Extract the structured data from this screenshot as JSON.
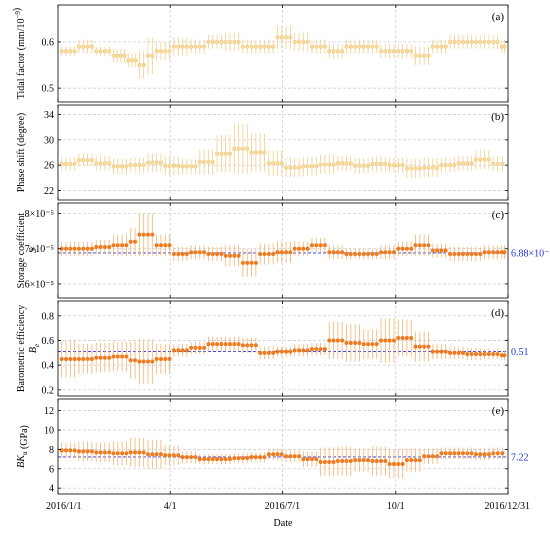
{
  "colors": {
    "light_series": "#f0c878",
    "dark_series": "#f07a1e",
    "light_errorbar": "#f3cf8a",
    "dark_errorbar": "#f5b26e",
    "reference_line": "#2431d6",
    "grid": "#c9c9c9"
  },
  "chart_data": {
    "type": "scatter",
    "shared_x": {
      "label": "Date",
      "type": "date",
      "range": [
        "2016-01-01",
        "2016-12-31"
      ],
      "ticks": [
        {
          "date": "2016-01-01",
          "label": "2016/1/1"
        },
        {
          "date": "2016-04-01",
          "label": "4/1"
        },
        {
          "date": "2016-07-01",
          "label": "2016/7/1"
        },
        {
          "date": "2016-10-01",
          "label": "10/1"
        },
        {
          "date": "2016-12-31",
          "label": "2016/12/31"
        }
      ],
      "grid": true
    },
    "panels": [
      {
        "id": "a",
        "panel_label": "(a)",
        "ylabel": "Tidal factor (mm/10⁻⁹)",
        "ylim": [
          0.47,
          0.68
        ],
        "yticks": [
          {
            "v": 0.5,
            "label": "0.5"
          },
          {
            "v": 0.6,
            "label": "0.6"
          }
        ],
        "grid": true,
        "marker_color": "light",
        "reference": null,
        "points": [
          [
            "2016-01-04",
            0.58,
            0.01
          ],
          [
            "2016-01-18",
            0.59,
            0.015
          ],
          [
            "2016-02-01",
            0.58,
            0.01
          ],
          [
            "2016-02-15",
            0.57,
            0.015
          ],
          [
            "2016-02-27",
            0.56,
            0.015
          ],
          [
            "2016-03-07",
            0.55,
            0.03
          ],
          [
            "2016-03-14",
            0.57,
            0.04
          ],
          [
            "2016-03-21",
            0.58,
            0.02
          ],
          [
            "2016-04-04",
            0.59,
            0.02
          ],
          [
            "2016-04-18",
            0.59,
            0.015
          ],
          [
            "2016-05-02",
            0.6,
            0.015
          ],
          [
            "2016-05-16",
            0.6,
            0.02
          ],
          [
            "2016-05-30",
            0.59,
            0.015
          ],
          [
            "2016-06-13",
            0.59,
            0.015
          ],
          [
            "2016-06-27",
            0.61,
            0.025
          ],
          [
            "2016-07-11",
            0.6,
            0.02
          ],
          [
            "2016-07-25",
            0.59,
            0.015
          ],
          [
            "2016-08-08",
            0.58,
            0.015
          ],
          [
            "2016-08-22",
            0.59,
            0.015
          ],
          [
            "2016-09-05",
            0.59,
            0.015
          ],
          [
            "2016-09-19",
            0.58,
            0.015
          ],
          [
            "2016-10-03",
            0.58,
            0.015
          ],
          [
            "2016-10-17",
            0.57,
            0.02
          ],
          [
            "2016-10-31",
            0.59,
            0.015
          ],
          [
            "2016-11-14",
            0.6,
            0.015
          ],
          [
            "2016-11-28",
            0.6,
            0.015
          ],
          [
            "2016-12-12",
            0.6,
            0.015
          ],
          [
            "2016-12-26",
            0.59,
            0.015
          ]
        ]
      },
      {
        "id": "b",
        "panel_label": "(b)",
        "ylabel": "Phase shift (degree)",
        "ylim": [
          20.5,
          35.5
        ],
        "yticks": [
          {
            "v": 22,
            "label": "22"
          },
          {
            "v": 26,
            "label": "26"
          },
          {
            "v": 30,
            "label": "30"
          },
          {
            "v": 34,
            "label": "34"
          }
        ],
        "grid": true,
        "marker_color": "light",
        "reference": null,
        "points": [
          [
            "2016-01-04",
            26.2,
            1.0
          ],
          [
            "2016-01-18",
            26.8,
            1.0
          ],
          [
            "2016-02-01",
            26.3,
            1.2
          ],
          [
            "2016-02-15",
            25.8,
            1.2
          ],
          [
            "2016-02-29",
            26.0,
            1.2
          ],
          [
            "2016-03-14",
            26.4,
            1.5
          ],
          [
            "2016-03-28",
            25.9,
            1.5
          ],
          [
            "2016-04-11",
            25.8,
            1.2
          ],
          [
            "2016-04-25",
            26.5,
            2.0
          ],
          [
            "2016-05-09",
            27.8,
            3.0
          ],
          [
            "2016-05-23",
            28.6,
            4.0
          ],
          [
            "2016-06-06",
            28.0,
            3.0
          ],
          [
            "2016-06-20",
            26.3,
            2.0
          ],
          [
            "2016-07-04",
            25.6,
            1.5
          ],
          [
            "2016-07-18",
            25.8,
            1.5
          ],
          [
            "2016-08-01",
            26.1,
            1.5
          ],
          [
            "2016-08-15",
            26.3,
            1.2
          ],
          [
            "2016-08-29",
            25.9,
            1.2
          ],
          [
            "2016-09-12",
            26.2,
            1.2
          ],
          [
            "2016-09-26",
            26.0,
            1.2
          ],
          [
            "2016-10-10",
            25.5,
            1.5
          ],
          [
            "2016-10-24",
            25.6,
            1.5
          ],
          [
            "2016-11-07",
            26.0,
            1.2
          ],
          [
            "2016-11-21",
            26.3,
            1.2
          ],
          [
            "2016-12-05",
            26.9,
            1.5
          ],
          [
            "2016-12-19",
            26.2,
            1.2
          ]
        ]
      },
      {
        "id": "c",
        "panel_label": "(c)",
        "ylabel": "Storage coefficient S",
        "ylim": [
          5.6e-05,
          8.3e-05
        ],
        "yticks": [
          {
            "v": 6e-05,
            "label": "6×10⁻⁵"
          },
          {
            "v": 7e-05,
            "label": "7×10⁻⁵"
          },
          {
            "v": 8e-05,
            "label": "8×10⁻⁵"
          }
        ],
        "grid": true,
        "marker_color": "dark",
        "reference": {
          "value": 6.88e-05,
          "label": "6.88×10⁻⁵"
        },
        "points": [
          [
            "2016-01-04",
            7e-05,
            2e-06
          ],
          [
            "2016-01-18",
            7e-05,
            2e-06
          ],
          [
            "2016-02-01",
            7.05e-05,
            2e-06
          ],
          [
            "2016-02-15",
            7.1e-05,
            3e-06
          ],
          [
            "2016-02-29",
            7.2e-05,
            4e-06
          ],
          [
            "2016-03-07",
            7.4e-05,
            6e-06
          ],
          [
            "2016-03-21",
            7.1e-05,
            3e-06
          ],
          [
            "2016-04-04",
            6.85e-05,
            2e-06
          ],
          [
            "2016-04-18",
            6.9e-05,
            2e-06
          ],
          [
            "2016-05-02",
            6.85e-05,
            2e-06
          ],
          [
            "2016-05-16",
            6.8e-05,
            3e-06
          ],
          [
            "2016-05-30",
            6.6e-05,
            4e-06
          ],
          [
            "2016-06-13",
            6.85e-05,
            3e-06
          ],
          [
            "2016-06-27",
            6.9e-05,
            3e-06
          ],
          [
            "2016-07-11",
            7e-05,
            2e-06
          ],
          [
            "2016-07-25",
            7.1e-05,
            2e-06
          ],
          [
            "2016-08-08",
            6.9e-05,
            2e-06
          ],
          [
            "2016-08-22",
            6.85e-05,
            1.5e-06
          ],
          [
            "2016-09-05",
            6.85e-05,
            1.5e-06
          ],
          [
            "2016-09-19",
            6.9e-05,
            2e-06
          ],
          [
            "2016-10-03",
            7e-05,
            2e-06
          ],
          [
            "2016-10-17",
            7.1e-05,
            3e-06
          ],
          [
            "2016-10-31",
            6.95e-05,
            2e-06
          ],
          [
            "2016-11-14",
            6.85e-05,
            2e-06
          ],
          [
            "2016-11-28",
            6.85e-05,
            2e-06
          ],
          [
            "2016-12-12",
            6.9e-05,
            2e-06
          ],
          [
            "2016-12-26",
            6.9e-05,
            2e-06
          ]
        ]
      },
      {
        "id": "d",
        "panel_label": "(d)",
        "ylabel": "Barometric efficiency Be",
        "ylim": [
          0.15,
          0.92
        ],
        "yticks": [
          {
            "v": 0.2,
            "label": "0.2"
          },
          {
            "v": 0.4,
            "label": "0.4"
          },
          {
            "v": 0.6,
            "label": "0.6"
          },
          {
            "v": 0.8,
            "label": "0.8"
          }
        ],
        "grid": true,
        "marker_color": "dark",
        "reference": {
          "value": 0.51,
          "label": "0.51"
        },
        "points": [
          [
            "2016-01-04",
            0.45,
            0.15
          ],
          [
            "2016-01-18",
            0.45,
            0.12
          ],
          [
            "2016-02-01",
            0.46,
            0.12
          ],
          [
            "2016-02-15",
            0.47,
            0.12
          ],
          [
            "2016-02-29",
            0.44,
            0.15
          ],
          [
            "2016-03-07",
            0.43,
            0.18
          ],
          [
            "2016-03-21",
            0.45,
            0.12
          ],
          [
            "2016-04-04",
            0.52,
            0.05
          ],
          [
            "2016-04-18",
            0.54,
            0.05
          ],
          [
            "2016-05-02",
            0.57,
            0.06
          ],
          [
            "2016-05-16",
            0.57,
            0.06
          ],
          [
            "2016-05-30",
            0.56,
            0.06
          ],
          [
            "2016-06-13",
            0.5,
            0.05
          ],
          [
            "2016-06-27",
            0.51,
            0.04
          ],
          [
            "2016-07-11",
            0.52,
            0.05
          ],
          [
            "2016-07-25",
            0.53,
            0.05
          ],
          [
            "2016-08-08",
            0.6,
            0.15
          ],
          [
            "2016-08-22",
            0.58,
            0.15
          ],
          [
            "2016-09-05",
            0.57,
            0.12
          ],
          [
            "2016-09-19",
            0.6,
            0.18
          ],
          [
            "2016-10-03",
            0.62,
            0.15
          ],
          [
            "2016-10-17",
            0.55,
            0.12
          ],
          [
            "2016-10-31",
            0.51,
            0.06
          ],
          [
            "2016-11-14",
            0.5,
            0.05
          ],
          [
            "2016-11-28",
            0.49,
            0.05
          ],
          [
            "2016-12-12",
            0.49,
            0.04
          ],
          [
            "2016-12-26",
            0.48,
            0.04
          ]
        ]
      },
      {
        "id": "e",
        "panel_label": "(e)",
        "ylabel": "BKu (GPa)",
        "ylim": [
          3.4,
          13.2
        ],
        "yticks": [
          {
            "v": 4,
            "label": "4"
          },
          {
            "v": 6,
            "label": "6"
          },
          {
            "v": 8,
            "label": "8"
          },
          {
            "v": 10,
            "label": "10"
          },
          {
            "v": 12,
            "label": "12"
          }
        ],
        "grid": true,
        "marker_color": "dark",
        "reference": {
          "value": 7.22,
          "label": "7.22"
        },
        "points": [
          [
            "2016-01-04",
            7.9,
            0.8
          ],
          [
            "2016-01-18",
            7.8,
            1.0
          ],
          [
            "2016-02-01",
            7.7,
            1.0
          ],
          [
            "2016-02-15",
            7.6,
            1.2
          ],
          [
            "2016-02-29",
            7.7,
            1.5
          ],
          [
            "2016-03-14",
            7.5,
            1.5
          ],
          [
            "2016-03-28",
            7.4,
            1.0
          ],
          [
            "2016-04-11",
            7.2,
            0.6
          ],
          [
            "2016-04-25",
            7.0,
            0.5
          ],
          [
            "2016-05-09",
            7.0,
            0.5
          ],
          [
            "2016-05-23",
            7.1,
            0.5
          ],
          [
            "2016-06-06",
            7.2,
            0.5
          ],
          [
            "2016-06-20",
            7.5,
            0.6
          ],
          [
            "2016-07-04",
            7.3,
            0.6
          ],
          [
            "2016-07-18",
            7.0,
            0.8
          ],
          [
            "2016-08-01",
            6.7,
            1.5
          ],
          [
            "2016-08-15",
            6.8,
            1.5
          ],
          [
            "2016-08-29",
            6.9,
            1.2
          ],
          [
            "2016-09-12",
            6.8,
            1.5
          ],
          [
            "2016-09-26",
            6.5,
            1.5
          ],
          [
            "2016-10-10",
            6.9,
            1.2
          ],
          [
            "2016-10-24",
            7.3,
            0.8
          ],
          [
            "2016-11-07",
            7.6,
            0.6
          ],
          [
            "2016-11-21",
            7.6,
            0.6
          ],
          [
            "2016-12-05",
            7.5,
            0.6
          ],
          [
            "2016-12-19",
            7.6,
            0.6
          ]
        ]
      }
    ]
  }
}
